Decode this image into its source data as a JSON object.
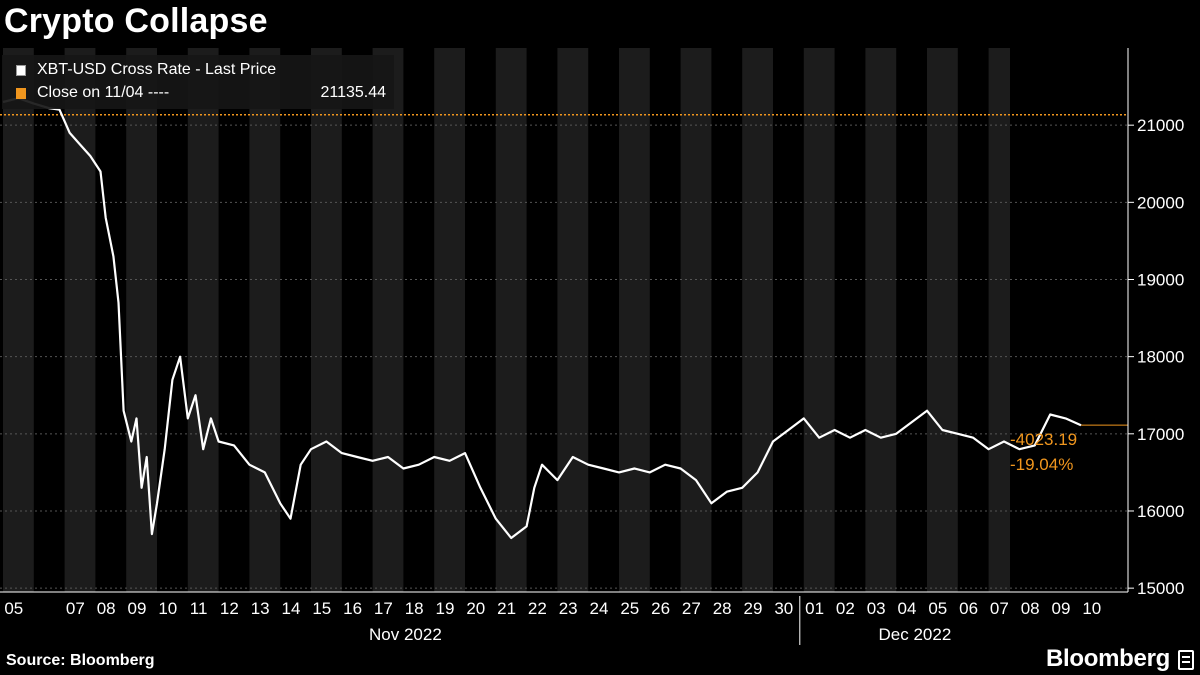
{
  "title": "Crypto Collapse",
  "legend": {
    "series_label": "XBT-USD Cross Rate - Last Price",
    "close_label": "Close on 11/04 ----",
    "close_value": "21135.44"
  },
  "colors": {
    "background": "#000000",
    "line": "#ffffff",
    "accent": "#f0961e",
    "shade": "#1c1c1c",
    "grid": "#555555"
  },
  "annotations": {
    "change_abs": "-4023.19",
    "change_pct": "-19.04%"
  },
  "footer": {
    "source": "Source: Bloomberg",
    "brand": "Bloomberg",
    "brand_icon": "bloomberg-terminal-icon"
  },
  "chart_data": {
    "type": "line",
    "title": "Crypto Collapse",
    "series": [
      {
        "name": "XBT-USD Cross Rate - Last Price",
        "x": [
          "2022-11-05 00:00",
          "2022-11-05 12:00",
          "2022-11-06 00:00",
          "2022-11-06 12:00",
          "2022-11-06 20:00",
          "2022-11-07 04:00",
          "2022-11-07 12:00",
          "2022-11-07 20:00",
          "2022-11-08 04:00",
          "2022-11-08 08:00",
          "2022-11-08 14:00",
          "2022-11-08 18:00",
          "2022-11-08 22:00",
          "2022-11-09 04:00",
          "2022-11-09 08:00",
          "2022-11-09 12:00",
          "2022-11-09 16:00",
          "2022-11-09 20:00",
          "2022-11-10 00:00",
          "2022-11-10 06:00",
          "2022-11-10 12:00",
          "2022-11-10 18:00",
          "2022-11-11 00:00",
          "2022-11-11 06:00",
          "2022-11-11 12:00",
          "2022-11-11 18:00",
          "2022-11-12 00:00",
          "2022-11-12 12:00",
          "2022-11-13 00:00",
          "2022-11-13 12:00",
          "2022-11-14 00:00",
          "2022-11-14 08:00",
          "2022-11-14 16:00",
          "2022-11-15 00:00",
          "2022-11-15 12:00",
          "2022-11-16 00:00",
          "2022-11-16 12:00",
          "2022-11-17 00:00",
          "2022-11-17 12:00",
          "2022-11-18 00:00",
          "2022-11-18 12:00",
          "2022-11-19 00:00",
          "2022-11-19 12:00",
          "2022-11-20 00:00",
          "2022-11-20 12:00",
          "2022-11-21 00:00",
          "2022-11-21 12:00",
          "2022-11-22 00:00",
          "2022-11-22 06:00",
          "2022-11-22 12:00",
          "2022-11-23 00:00",
          "2022-11-23 12:00",
          "2022-11-24 00:00",
          "2022-11-24 12:00",
          "2022-11-25 00:00",
          "2022-11-25 12:00",
          "2022-11-26 00:00",
          "2022-11-26 12:00",
          "2022-11-27 00:00",
          "2022-11-27 12:00",
          "2022-11-28 00:00",
          "2022-11-28 12:00",
          "2022-11-29 00:00",
          "2022-11-29 12:00",
          "2022-11-30 00:00",
          "2022-11-30 12:00",
          "2022-12-01 00:00",
          "2022-12-01 12:00",
          "2022-12-02 00:00",
          "2022-12-02 12:00",
          "2022-12-03 00:00",
          "2022-12-03 12:00",
          "2022-12-04 00:00",
          "2022-12-04 12:00",
          "2022-12-05 00:00",
          "2022-12-05 12:00",
          "2022-12-06 00:00",
          "2022-12-06 12:00",
          "2022-12-07 00:00",
          "2022-12-07 12:00",
          "2022-12-08 00:00",
          "2022-12-08 12:00",
          "2022-12-09 00:00",
          "2022-12-09 12:00",
          "2022-12-10 00:00"
        ],
        "values": [
          21300,
          21350,
          21280,
          21220,
          21200,
          20900,
          20750,
          20600,
          20400,
          19800,
          19300,
          18700,
          17300,
          16900,
          17200,
          16300,
          16700,
          15700,
          16100,
          16800,
          17700,
          18000,
          17200,
          17500,
          16800,
          17200,
          16900,
          16850,
          16600,
          16500,
          16100,
          15900,
          16600,
          16800,
          16900,
          16750,
          16700,
          16650,
          16700,
          16550,
          16600,
          16700,
          16650,
          16750,
          16300,
          15900,
          15650,
          15800,
          16300,
          16600,
          16400,
          16700,
          16600,
          16550,
          16500,
          16550,
          16500,
          16600,
          16550,
          16400,
          16100,
          16250,
          16300,
          16500,
          16900,
          17050,
          17200,
          16950,
          17050,
          16950,
          17050,
          16950,
          17000,
          17150,
          17300,
          17050,
          17000,
          16950,
          16800,
          16900,
          16800,
          16850,
          17250,
          17200,
          17112
        ]
      }
    ],
    "reference_line": {
      "label": "Close on 11/04",
      "value": 21135.44
    },
    "xlabel": "",
    "ylabel": "",
    "x_ticks": [
      "05",
      "07",
      "08",
      "09",
      "10",
      "11",
      "12",
      "13",
      "14",
      "15",
      "16",
      "17",
      "18",
      "19",
      "20",
      "21",
      "22",
      "23",
      "24",
      "25",
      "26",
      "27",
      "28",
      "29",
      "30",
      "01",
      "02",
      "03",
      "04",
      "05",
      "06",
      "07",
      "08",
      "09",
      "10"
    ],
    "x_groups": [
      {
        "label": "Nov 2022"
      },
      {
        "label": "Dec 2022"
      }
    ],
    "y_ticks": [
      15000,
      16000,
      17000,
      18000,
      19000,
      20000,
      21000
    ],
    "ylim": [
      14950,
      22000
    ],
    "y_axis_side": "right",
    "grid": true,
    "legend_position": "top-left"
  }
}
